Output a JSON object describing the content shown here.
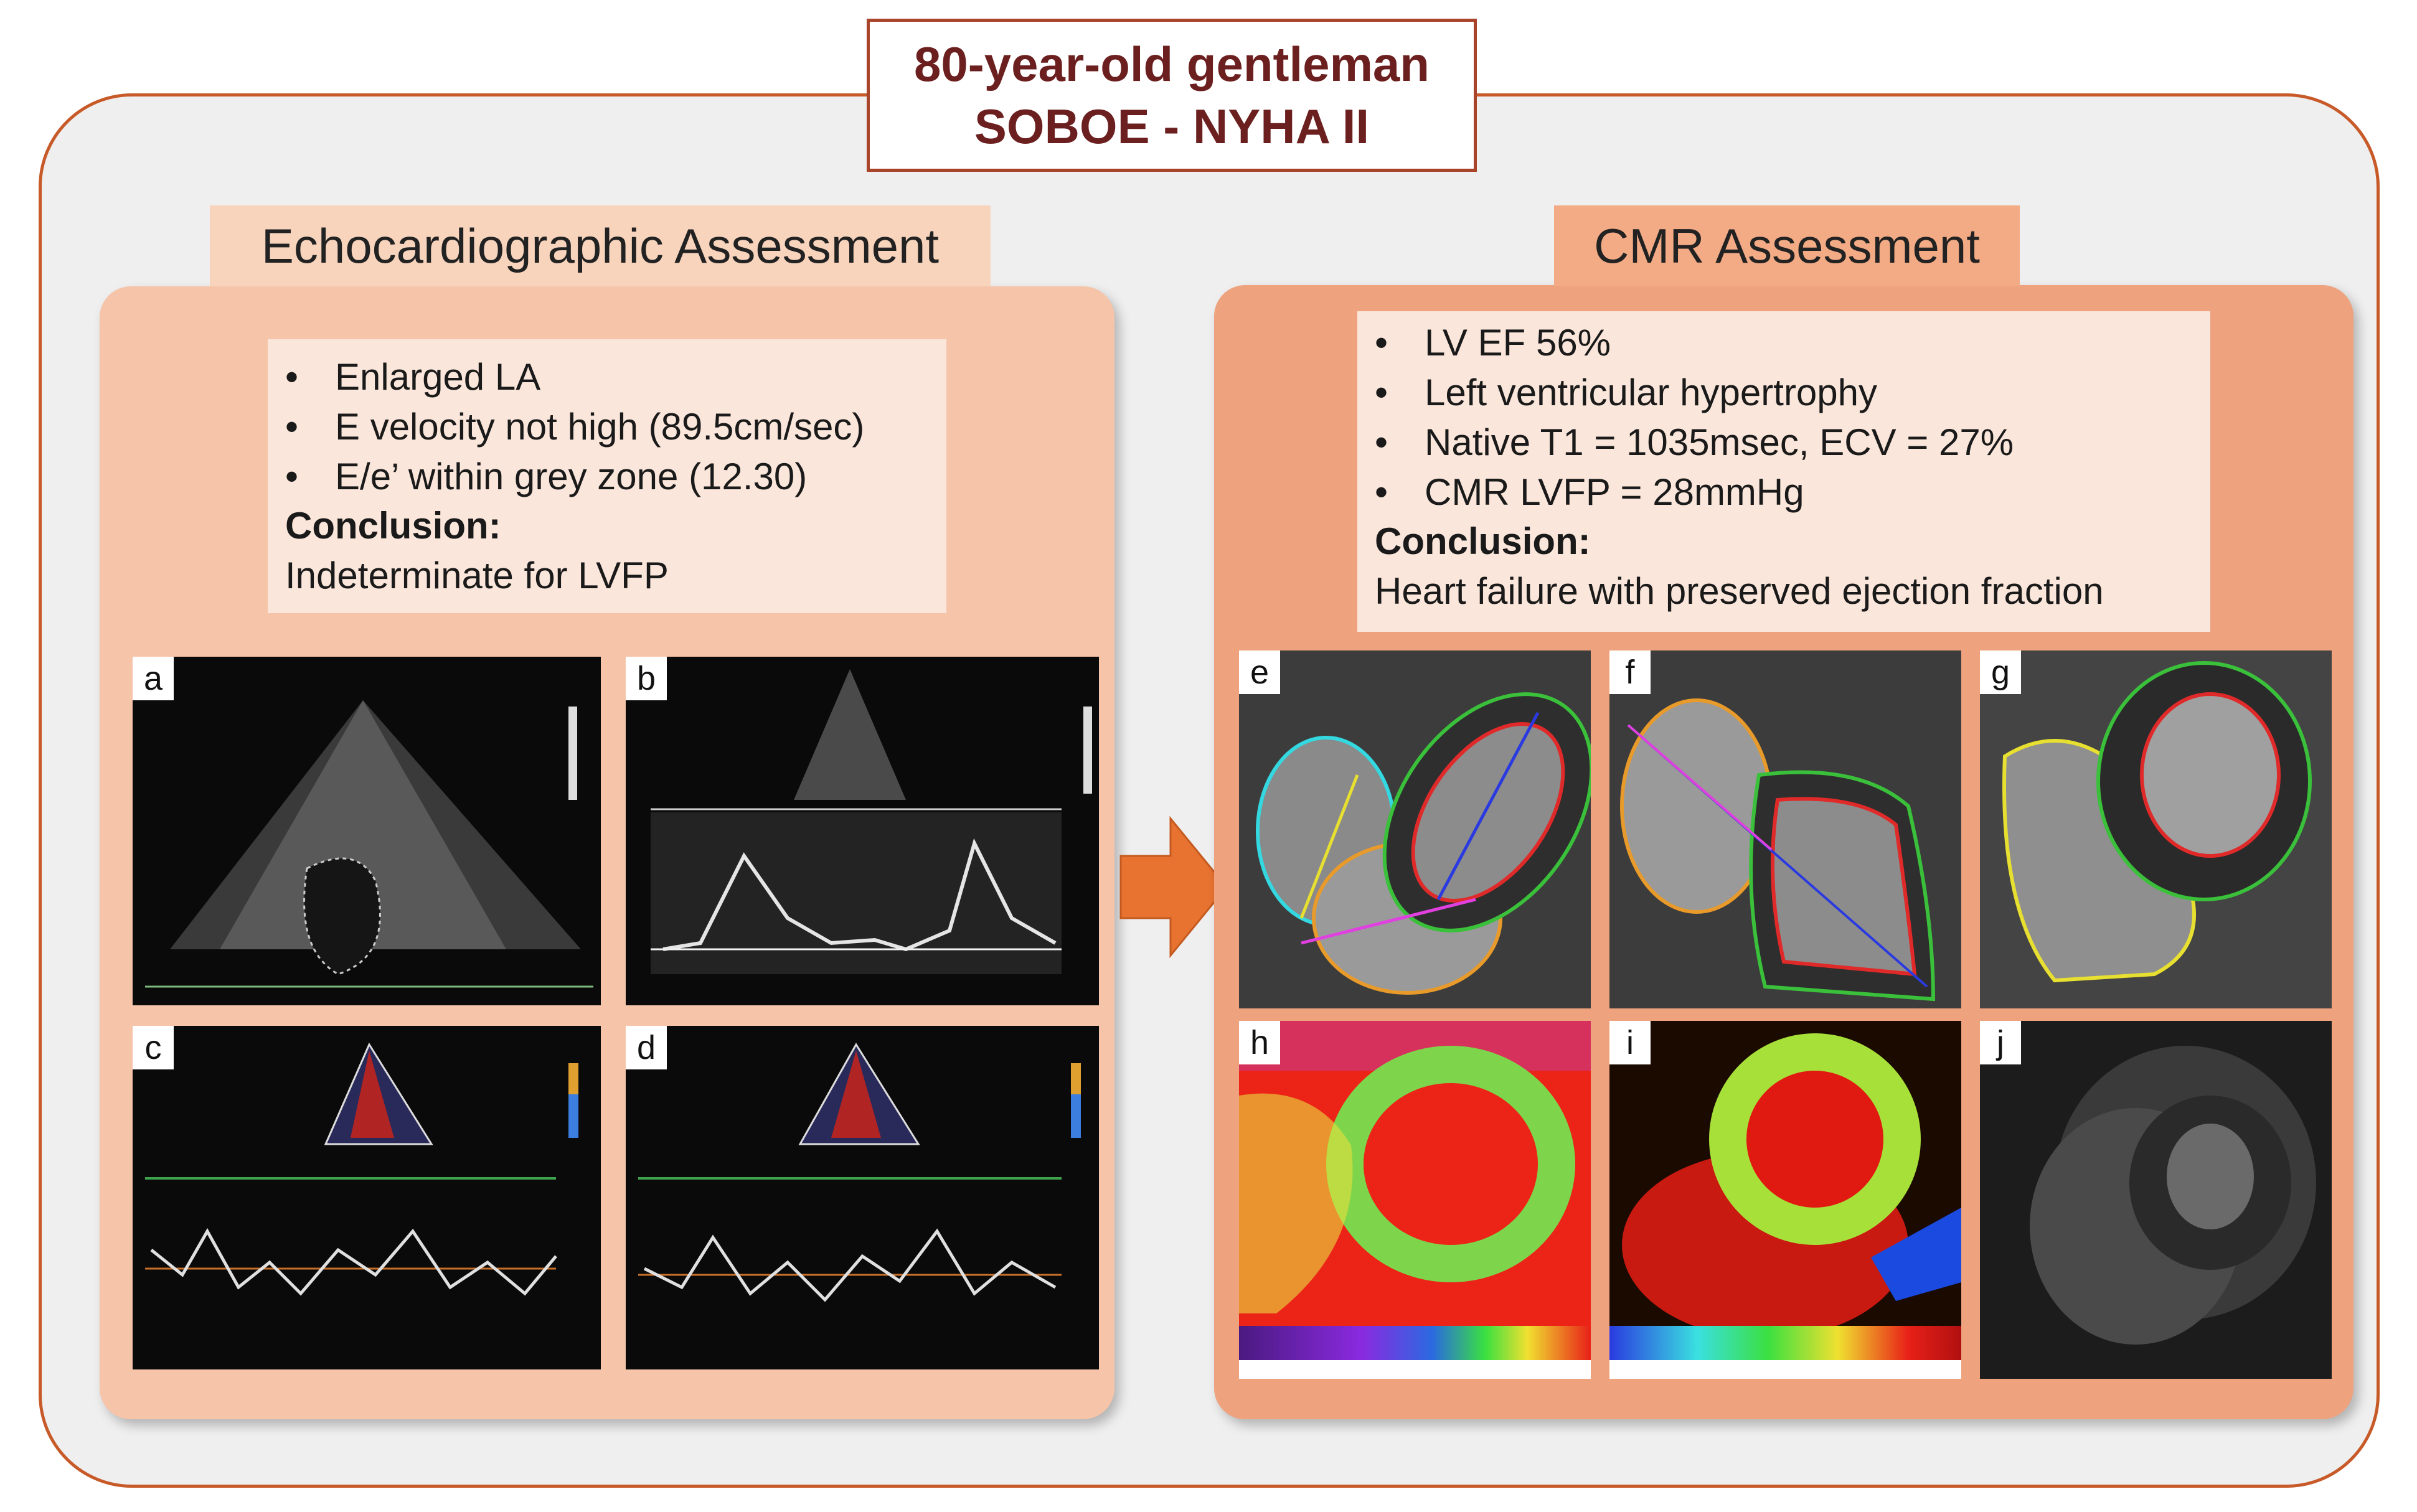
{
  "title": {
    "line1": "80-year-old gentleman",
    "line2": "SOBOE - NYHA II"
  },
  "echo": {
    "header": "Echocardiographic Assessment",
    "bullets": [
      "Enlarged LA",
      "E velocity not high (89.5cm/sec)",
      "E/e’ within grey zone (12.30)"
    ],
    "conclusion_label": "Conclusion:",
    "conclusion_text": "Indeterminate for LVFP",
    "panels": [
      {
        "label": "a"
      },
      {
        "label": "b"
      },
      {
        "label": "c"
      },
      {
        "label": "d"
      }
    ]
  },
  "cmr": {
    "header": "CMR  Assessment",
    "bullets": [
      "LV EF 56%",
      "Left ventricular hypertrophy",
      "Native T1 = 1035msec, ECV = 27%",
      "CMR LVFP = 28mmHg"
    ],
    "conclusion_label": "Conclusion:",
    "conclusion_text": "Heart failure with preserved ejection fraction",
    "panels": [
      {
        "label": "e"
      },
      {
        "label": "f"
      },
      {
        "label": "g"
      },
      {
        "label": "h"
      },
      {
        "label": "i"
      },
      {
        "label": "j"
      }
    ]
  },
  "bullet_glyph": "•",
  "colors": {
    "frame_border": "#c75a28",
    "title_text": "#6b1f1f",
    "echo_panel": "#f6c4a8",
    "cmr_panel": "#eea27e",
    "arrow": "#e87330"
  }
}
